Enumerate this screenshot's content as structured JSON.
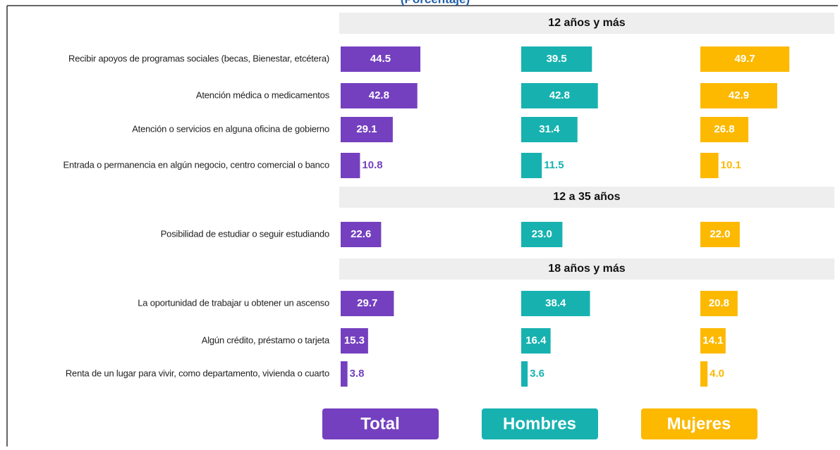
{
  "chart_data": {
    "type": "bar",
    "subtitle": "(Porcentaje)",
    "xlim": [
      0,
      100
    ],
    "series": [
      {
        "name": "Total",
        "color": "#7440bf"
      },
      {
        "name": "Hombres",
        "color": "#17b2b0"
      },
      {
        "name": "Mujeres",
        "color": "#fcb900"
      }
    ],
    "groups": [
      {
        "title": "12 años y más",
        "rows": [
          {
            "label": "Recibir apoyos de programas sociales (becas, Bienestar, etcétera)",
            "values": [
              44.5,
              39.5,
              49.7
            ],
            "value_labels": [
              "44.5",
              "39.5",
              "49.7"
            ]
          },
          {
            "label": "Atención médica o medicamentos",
            "values": [
              42.8,
              42.8,
              42.9
            ],
            "value_labels": [
              "42.8",
              "42.8",
              "42.9"
            ]
          },
          {
            "label": "Atención o servicios en alguna oficina de gobierno",
            "values": [
              29.1,
              31.4,
              26.8
            ],
            "value_labels": [
              "29.1",
              "31.4",
              "26.8"
            ]
          },
          {
            "label": "Entrada o permanencia en algún negocio, centro comercial o banco",
            "values": [
              10.8,
              11.5,
              10.1
            ],
            "value_labels": [
              "10.8",
              "11.5",
              "10.1"
            ]
          }
        ]
      },
      {
        "title": "12 a 35 años",
        "rows": [
          {
            "label": "Posibilidad de estudiar o seguir estudiando",
            "values": [
              22.6,
              23,
              22
            ],
            "value_labels": [
              "22.6",
              "23.0",
              "22.0"
            ]
          }
        ]
      },
      {
        "title": "18 años y más",
        "rows": [
          {
            "label": "La oportunidad de trabajar u obtener un ascenso",
            "values": [
              29.7,
              38.4,
              20.8
            ],
            "value_labels": [
              "29.7",
              "38.4",
              "20.8"
            ]
          },
          {
            "label": "Algún crédito, préstamo o tarjeta",
            "values": [
              15.3,
              16.4,
              14.1
            ],
            "value_labels": [
              "15.3",
              "16.4",
              "14.1"
            ]
          },
          {
            "label": "Renta de un lugar para vivir, como departamento, vivienda o cuarto",
            "values": [
              3.8,
              3.6,
              4
            ],
            "value_labels": [
              "3.8",
              "3.6",
              "4.0"
            ]
          }
        ]
      }
    ]
  }
}
